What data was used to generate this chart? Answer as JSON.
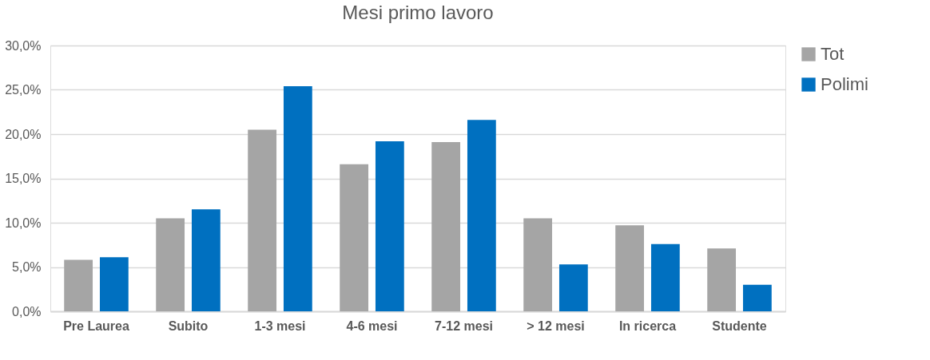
{
  "chart_data": {
    "type": "bar",
    "title": "Mesi primo lavoro",
    "categories": [
      "Pre Laurea",
      "Subito",
      "1-3 mesi",
      "4-6 mesi",
      "7-12 mesi",
      "> 12 mesi",
      "In ricerca",
      "Studente"
    ],
    "series": [
      {
        "name": "Tot",
        "color": "#a5a5a5",
        "values": [
          5.8,
          10.5,
          20.5,
          16.6,
          19.1,
          10.5,
          9.7,
          7.1
        ]
      },
      {
        "name": "Polimi",
        "color": "#0070c0",
        "values": [
          6.1,
          11.5,
          25.4,
          19.2,
          21.6,
          5.3,
          7.6,
          3.0
        ]
      }
    ],
    "ylim": [
      0,
      30
    ],
    "yticks": [
      {
        "value": 0,
        "label": "0,0%"
      },
      {
        "value": 5,
        "label": "5,0%"
      },
      {
        "value": 10,
        "label": "10,0%"
      },
      {
        "value": 15,
        "label": "15,0%"
      },
      {
        "value": 20,
        "label": "20,0%"
      },
      {
        "value": 25,
        "label": "25,0%"
      },
      {
        "value": 30,
        "label": "30,0%"
      }
    ],
    "grid": "y",
    "legend": "right"
  }
}
